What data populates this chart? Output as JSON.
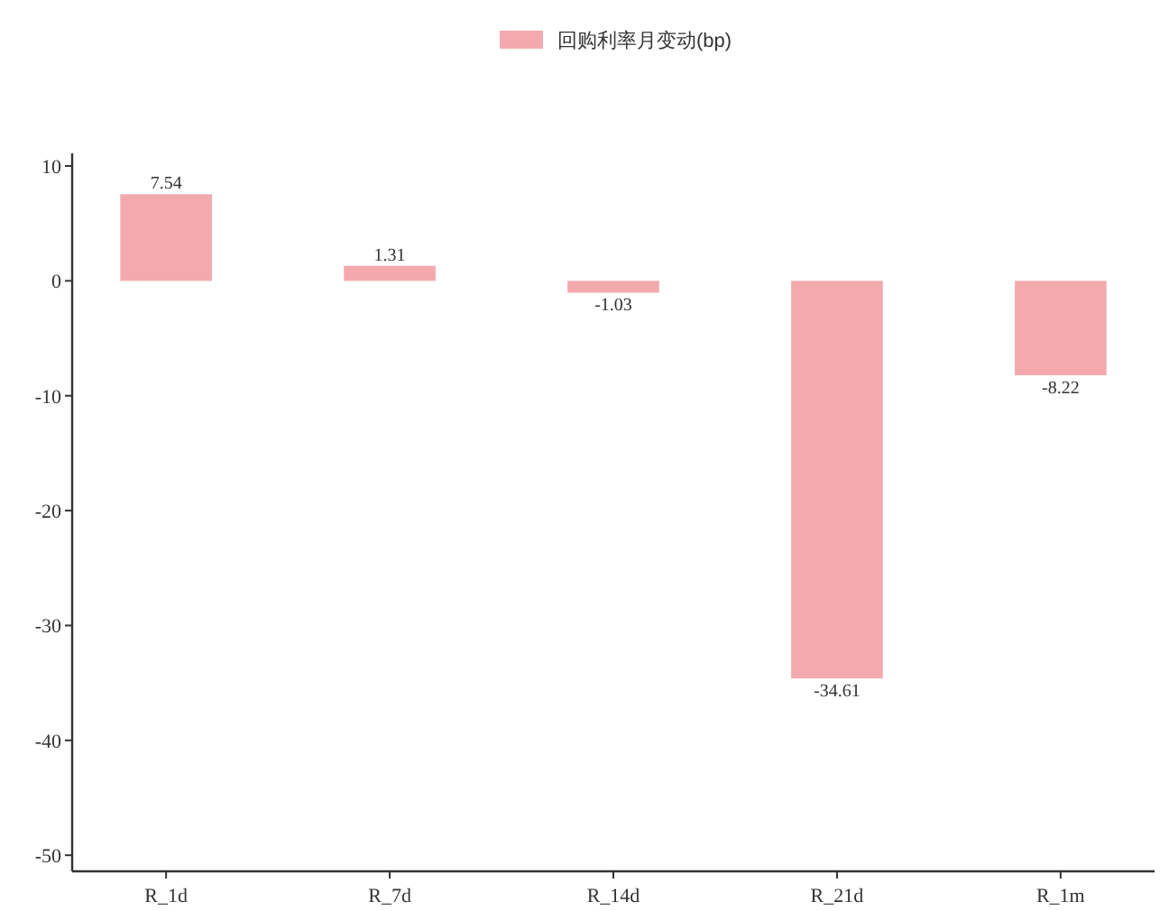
{
  "chart_data": {
    "type": "bar",
    "categories": [
      "R_1d",
      "R_7d",
      "R_14d",
      "R_21d",
      "R_1m"
    ],
    "series": [
      {
        "name": "回购利率月变动(bp)",
        "color": "#f4a9ae",
        "values": [
          7.54,
          1.31,
          -1.03,
          -34.61,
          -8.22
        ]
      }
    ],
    "ylim": [
      -51.4,
      11.1
    ],
    "yticks": [
      -50,
      -40,
      -30,
      -20,
      -10,
      0,
      10
    ],
    "data_labels": true,
    "grid": false,
    "legend": "top"
  }
}
